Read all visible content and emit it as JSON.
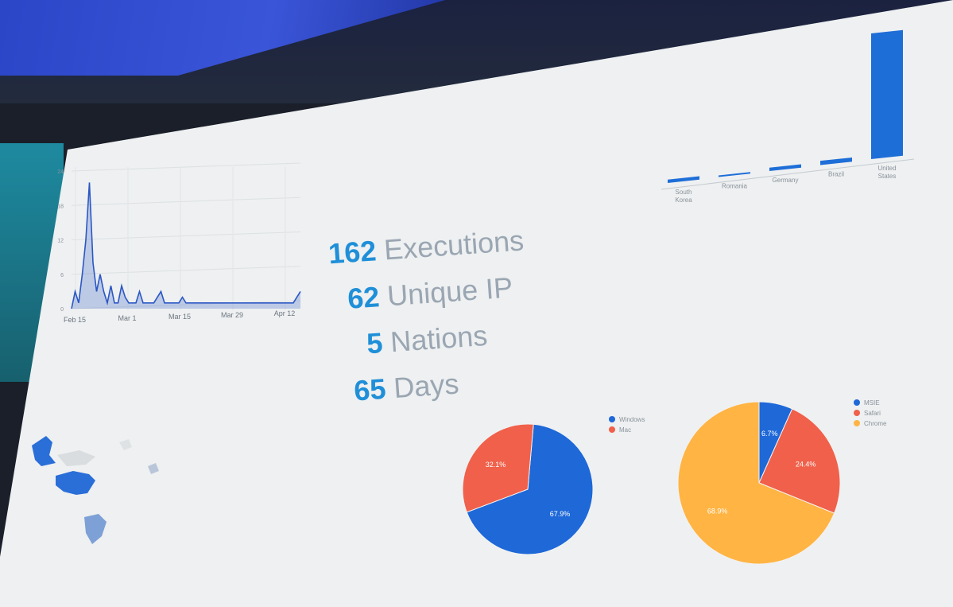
{
  "stats": [
    {
      "value": "162",
      "label": "Executions"
    },
    {
      "value": "62",
      "label": "Unique IP"
    },
    {
      "value": "5",
      "label": "Nations"
    },
    {
      "value": "65",
      "label": "Days"
    }
  ],
  "chart_data": [
    {
      "type": "area",
      "title": "",
      "xlabel": "",
      "ylabel": "",
      "x_ticks": [
        "Feb 15",
        "Mar 1",
        "Mar 15",
        "Mar 29",
        "Apr 12"
      ],
      "y_ticks": [
        "0",
        "6",
        "12",
        "18",
        "24"
      ],
      "ylim": [
        0,
        24
      ],
      "x": [
        0,
        1,
        2,
        3,
        4,
        5,
        6,
        7,
        8,
        9,
        10,
        11,
        12,
        13,
        14,
        15,
        16,
        17,
        18,
        19,
        20,
        21,
        22,
        23,
        24,
        25,
        26,
        27,
        28,
        29,
        30,
        31,
        32,
        33,
        34,
        35,
        36,
        37,
        38,
        39,
        40,
        41,
        42,
        43,
        44,
        45,
        46,
        47,
        48,
        49,
        50,
        51,
        52,
        53,
        54,
        55,
        56,
        57,
        58,
        59,
        60,
        61,
        62,
        63,
        64
      ],
      "values": [
        0,
        3,
        1,
        6,
        12,
        22,
        8,
        3,
        6,
        3,
        1,
        4,
        1,
        1,
        4,
        2,
        1,
        1,
        1,
        3,
        1,
        1,
        1,
        1,
        2,
        3,
        1,
        1,
        1,
        1,
        1,
        2,
        1,
        1,
        1,
        1,
        1,
        1,
        1,
        1,
        1,
        1,
        1,
        1,
        1,
        1,
        1,
        1,
        1,
        1,
        1,
        1,
        1,
        1,
        1,
        1,
        1,
        1,
        1,
        1,
        1,
        1,
        1,
        2,
        3
      ],
      "grid": true,
      "color": "#2a57c4"
    },
    {
      "type": "bar",
      "categories": [
        "South Korea",
        "Romania",
        "Germany",
        "Brazil",
        "United States"
      ],
      "values": [
        4,
        1,
        4,
        5,
        148
      ],
      "title": "",
      "color": "#1e6ed8"
    },
    {
      "type": "pie",
      "labels": [
        "Windows",
        "Mac"
      ],
      "values": [
        67.9,
        32.1
      ],
      "value_labels": [
        "67.9%",
        "32.1%"
      ],
      "colors": [
        "#1e68d8",
        "#f0604a"
      ],
      "legend": "top-right"
    },
    {
      "type": "pie",
      "labels": [
        "MSIE",
        "Safari",
        "Chrome"
      ],
      "values": [
        6.7,
        24.4,
        68.9
      ],
      "value_labels": [
        "6.7%",
        "24.4%",
        "68.9%"
      ],
      "colors": [
        "#1e68d8",
        "#f0604a",
        "#ffb443"
      ],
      "legend": "top-right"
    }
  ],
  "map": {
    "highlight_color": "#2a6ed8",
    "countries": [
      "United States",
      "Brazil",
      "Germany",
      "Romania",
      "South Korea"
    ]
  }
}
